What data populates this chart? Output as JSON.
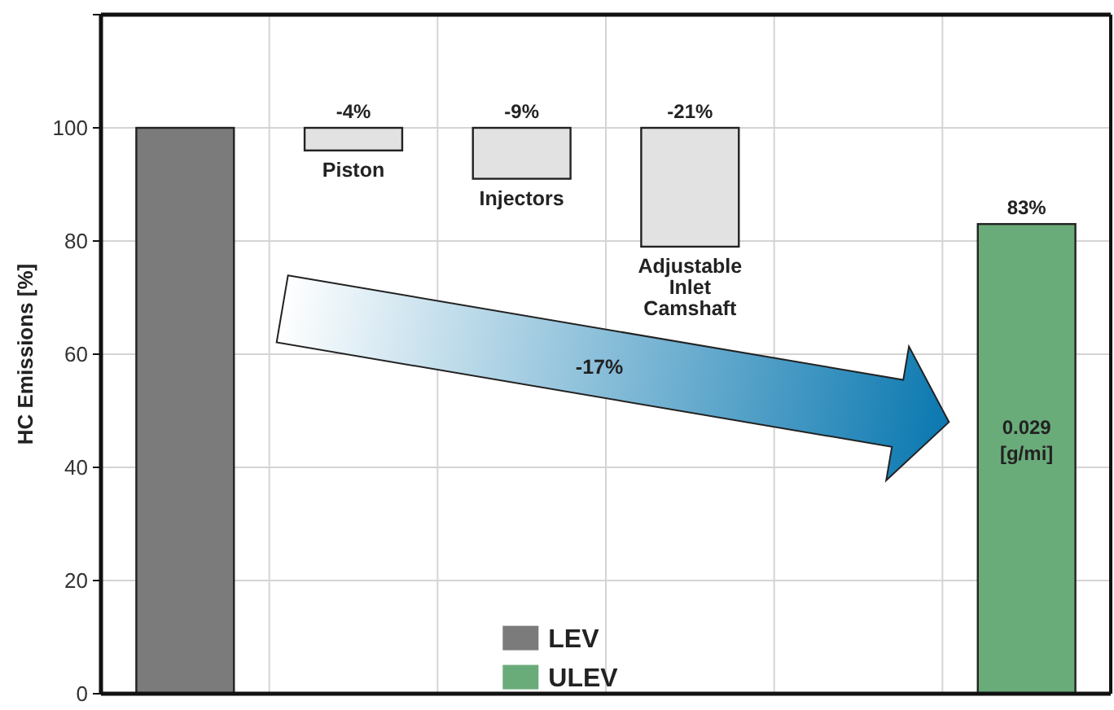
{
  "chart_data": {
    "type": "bar",
    "ylabel": "HC Emissions [%]",
    "categories": [
      null,
      "Piston",
      "Injectors",
      "Adjustable Inlet Camshaft",
      null,
      null
    ],
    "series": [
      {
        "name": "LEV",
        "color": "#7b7b7b",
        "values": [
          100,
          null,
          null,
          null,
          null,
          null
        ]
      },
      {
        "color": "#e2e2e2",
        "base": [
          null,
          100,
          100,
          100,
          null,
          null
        ],
        "values": [
          null,
          -4,
          -9,
          -21,
          null,
          null
        ],
        "value_labels": [
          null,
          "-4%",
          "-9%",
          "-21%",
          null,
          null
        ]
      },
      {
        "name": "ULEV",
        "color": "#6aab7a",
        "values": [
          null,
          null,
          null,
          null,
          null,
          83
        ],
        "value_labels": [
          null,
          null,
          null,
          null,
          null,
          "83%"
        ]
      }
    ],
    "annotations": [
      "-17%",
      "0.029 [g/mi]"
    ],
    "ylim": [
      0,
      120
    ],
    "yticks": [
      0,
      20,
      40,
      60,
      80,
      100,
      {
        "value": 120,
        "label": null
      }
    ],
    "grid": true,
    "legend": "bottom"
  }
}
